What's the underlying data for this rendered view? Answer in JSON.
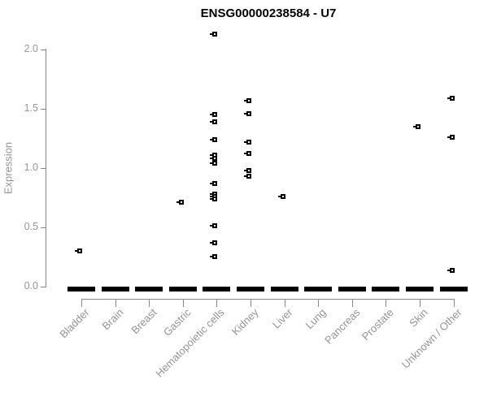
{
  "chart_data": {
    "type": "scatter",
    "title": "ENSG00000238584 - U7",
    "ylabel": "Expression",
    "xlabel": "",
    "ylim": [
      0.0,
      2.15
    ],
    "yticks": [
      0.0,
      0.5,
      1.0,
      1.5,
      2.0
    ],
    "ytick_labels": [
      "0.0",
      "0.5",
      "1.0",
      "1.5",
      "2.0"
    ],
    "grid": false,
    "legend": "none",
    "marker": "small-open-square",
    "colors": {
      "points": "#000000",
      "zero_bar": "#000000",
      "axis": "#888888",
      "tick_text": "#969696",
      "title_text": "#000000"
    },
    "categories": [
      "Bladder",
      "Brain",
      "Breast",
      "Gastric",
      "Hematopoietic cells",
      "Kidney",
      "Liver",
      "Lung",
      "Pancreas",
      "Prostate",
      "Skin",
      "Unknown / Other"
    ],
    "series": [
      {
        "category": "Bladder",
        "nonzero_points": [
          0.3
        ],
        "zero_cluster_bar": true
      },
      {
        "category": "Brain",
        "nonzero_points": [],
        "zero_cluster_bar": true
      },
      {
        "category": "Breast",
        "nonzero_points": [],
        "zero_cluster_bar": true
      },
      {
        "category": "Gastric",
        "nonzero_points": [
          0.71
        ],
        "zero_cluster_bar": true
      },
      {
        "category": "Hematopoietic cells",
        "nonzero_points": [
          2.13,
          1.45,
          1.39,
          1.24,
          1.11,
          1.08,
          1.04,
          0.87,
          0.78,
          0.76,
          0.74,
          0.51,
          0.37,
          0.25
        ],
        "zero_cluster_bar": true
      },
      {
        "category": "Kidney",
        "nonzero_points": [
          1.57,
          1.46,
          1.22,
          1.12,
          0.98,
          0.93
        ],
        "zero_cluster_bar": true
      },
      {
        "category": "Liver",
        "nonzero_points": [
          0.76
        ],
        "zero_cluster_bar": true
      },
      {
        "category": "Lung",
        "nonzero_points": [],
        "zero_cluster_bar": true
      },
      {
        "category": "Pancreas",
        "nonzero_points": [],
        "zero_cluster_bar": true
      },
      {
        "category": "Prostate",
        "nonzero_points": [],
        "zero_cluster_bar": true
      },
      {
        "category": "Skin",
        "nonzero_points": [
          1.35
        ],
        "zero_cluster_bar": true
      },
      {
        "category": "Unknown / Other",
        "nonzero_points": [
          1.59,
          1.26,
          0.14
        ],
        "zero_cluster_bar": true
      }
    ]
  }
}
